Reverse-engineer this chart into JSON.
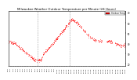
{
  "title": "Milwaukee Weather Outdoor Temperature per Minute (24 Hours)",
  "bg_color": "#ffffff",
  "line_color": "#ff0000",
  "dot_size": 0.8,
  "legend_label": "Outdoor Temp",
  "legend_color": "#ff0000",
  "vline_x1": 360,
  "vline_x2": 750,
  "ylim": [
    18,
    72
  ],
  "xlim": [
    0,
    1440
  ],
  "y_ticks": [
    20,
    30,
    40,
    50,
    60,
    70
  ],
  "x_tick_count": 48,
  "title_fontsize": 2.8,
  "tick_fontsize": 2.0,
  "sparsity": 0.55
}
